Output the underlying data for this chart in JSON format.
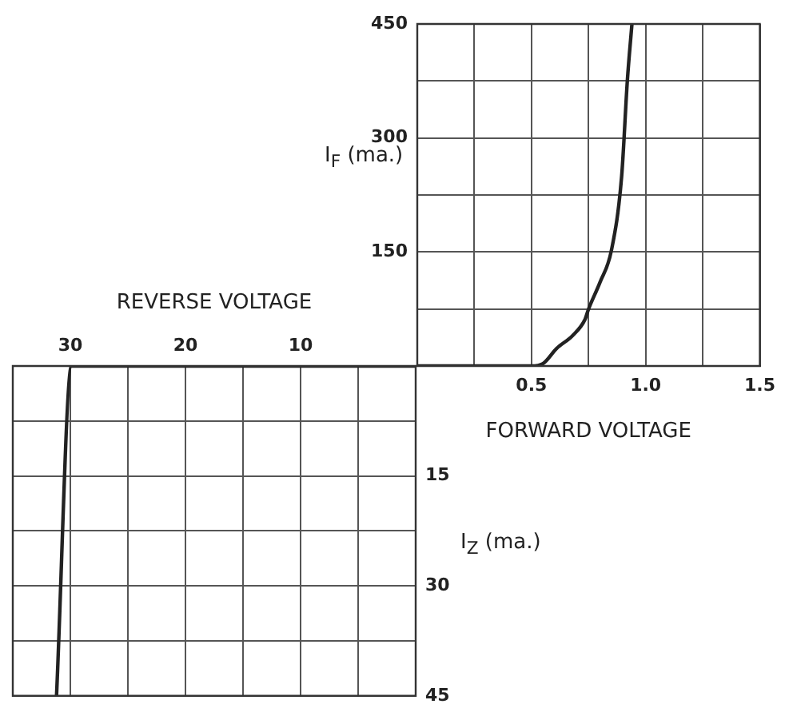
{
  "chart_data": [
    {
      "type": "line",
      "ylabel": "I$_{F}$ (ma.)",
      "xlabel": "FORWARD VOLTAGE",
      "x": [
        0,
        0.5,
        0.55,
        0.61,
        0.68,
        0.734,
        0.75,
        0.8,
        0.85,
        0.895,
        0.92,
        0.94
      ],
      "values": [
        0,
        0,
        3,
        23,
        40,
        61,
        75,
        110,
        152,
        250,
        376,
        450
      ],
      "color": "#222222",
      "xlim": [
        0,
        1.5
      ],
      "ylim": [
        0,
        450
      ],
      "xticks": [
        {
          "value": 0.25,
          "label": null
        },
        0.5,
        {
          "value": 0.75,
          "label": null
        },
        {
          "value": 1.0,
          "label": "1.0"
        },
        {
          "value": 1.25,
          "label": null
        },
        1.5
      ],
      "yticks": [
        {
          "value": 75,
          "label": null
        },
        150,
        {
          "value": 225,
          "label": null
        },
        300,
        {
          "value": 375,
          "label": null
        },
        450
      ],
      "grid": true,
      "marker": "none"
    },
    {
      "type": "line",
      "xlabel": "REVERSE VOLTAGE",
      "ylabel": "I$_{Z}$ (ma.)",
      "x": [
        0,
        29.9,
        31.2
      ],
      "values": [
        0,
        0,
        45
      ],
      "color": "#222222",
      "xlim": [
        35,
        0
      ],
      "ylim": [
        45,
        0
      ],
      "xticks": [
        {
          "value": 5,
          "label": null
        },
        10,
        {
          "value": 15,
          "label": null
        },
        20,
        {
          "value": 25,
          "label": null
        },
        30
      ],
      "yticks": [
        {
          "value": 7.5,
          "label": null
        },
        15,
        {
          "value": 22.5,
          "label": null
        },
        30,
        {
          "value": 37.5,
          "label": null
        },
        45
      ],
      "grid": true,
      "marker": "none"
    }
  ]
}
